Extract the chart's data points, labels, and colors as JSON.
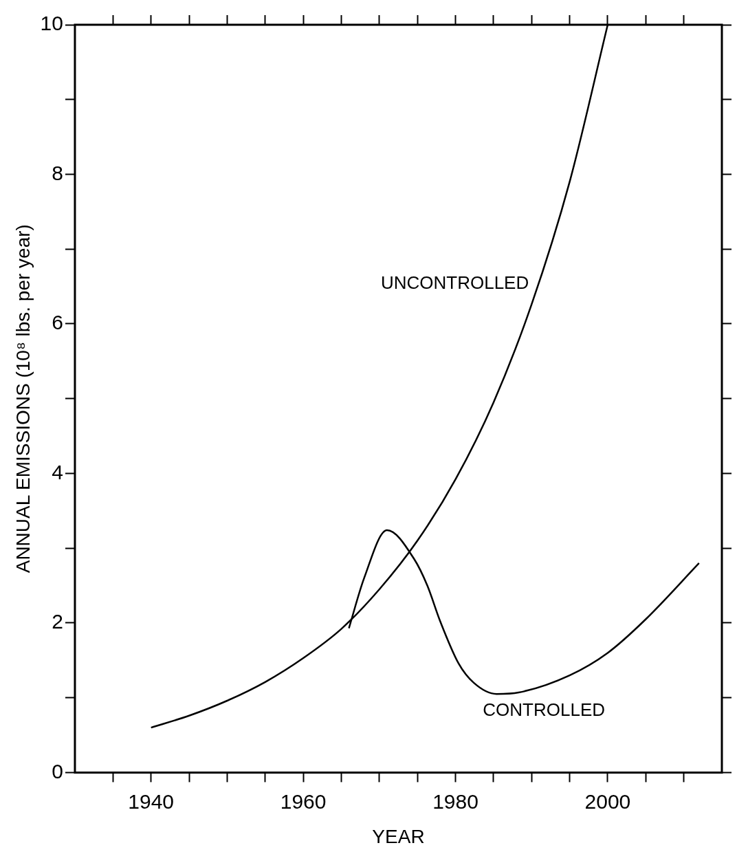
{
  "chart_data": {
    "type": "line",
    "xlabel": "YEAR",
    "ylabel": "ANNUAL EMISSIONS (10⁸ lbs. per year)",
    "xlim": [
      1930,
      2015
    ],
    "xticks": [
      {
        "value": 1935,
        "label": null
      },
      1940,
      {
        "value": 1945,
        "label": null
      },
      {
        "value": 1950,
        "label": null
      },
      {
        "value": 1955,
        "label": null
      },
      1960,
      {
        "value": 1965,
        "label": null
      },
      {
        "value": 1970,
        "label": null
      },
      {
        "value": 1975,
        "label": null
      },
      1980,
      {
        "value": 1985,
        "label": null
      },
      {
        "value": 1990,
        "label": null
      },
      {
        "value": 1995,
        "label": null
      },
      2000,
      {
        "value": 2005,
        "label": null
      },
      {
        "value": 2010,
        "label": null
      }
    ],
    "ylim": [
      0,
      10
    ],
    "yticks": [
      0,
      {
        "value": 1,
        "label": null
      },
      2,
      {
        "value": 3,
        "label": null
      },
      4,
      {
        "value": 5,
        "label": null
      },
      6,
      {
        "value": 7,
        "label": null
      },
      8,
      {
        "value": 9,
        "label": null
      },
      10
    ],
    "marker": "none",
    "line_style": "solid",
    "legend": false,
    "series": [
      {
        "name": "UNCONTROLLED",
        "color": "#000000",
        "x": [
          1940,
          1945,
          1950,
          1955,
          1960,
          1965,
          1970,
          1975,
          1980,
          1985,
          1990,
          1995,
          2000
        ],
        "values": [
          0.6,
          0.76,
          0.96,
          1.21,
          1.53,
          1.92,
          2.45,
          3.1,
          3.92,
          4.95,
          6.26,
          7.9,
          10
        ]
      },
      {
        "name": "CONTROLLED",
        "color": "#000000",
        "x": [
          1966,
          1968,
          1971,
          1974.6,
          1976.3,
          1978,
          1980.4,
          1982.4,
          1985.4,
          1988.3,
          1995,
          2000,
          2005,
          2012
        ],
        "values": [
          1.93,
          2.6,
          3.24,
          2.85,
          2.5,
          2.02,
          1.46,
          1.2,
          1.05,
          1.07,
          1.3,
          1.6,
          2.05,
          2.8
        ]
      }
    ]
  }
}
